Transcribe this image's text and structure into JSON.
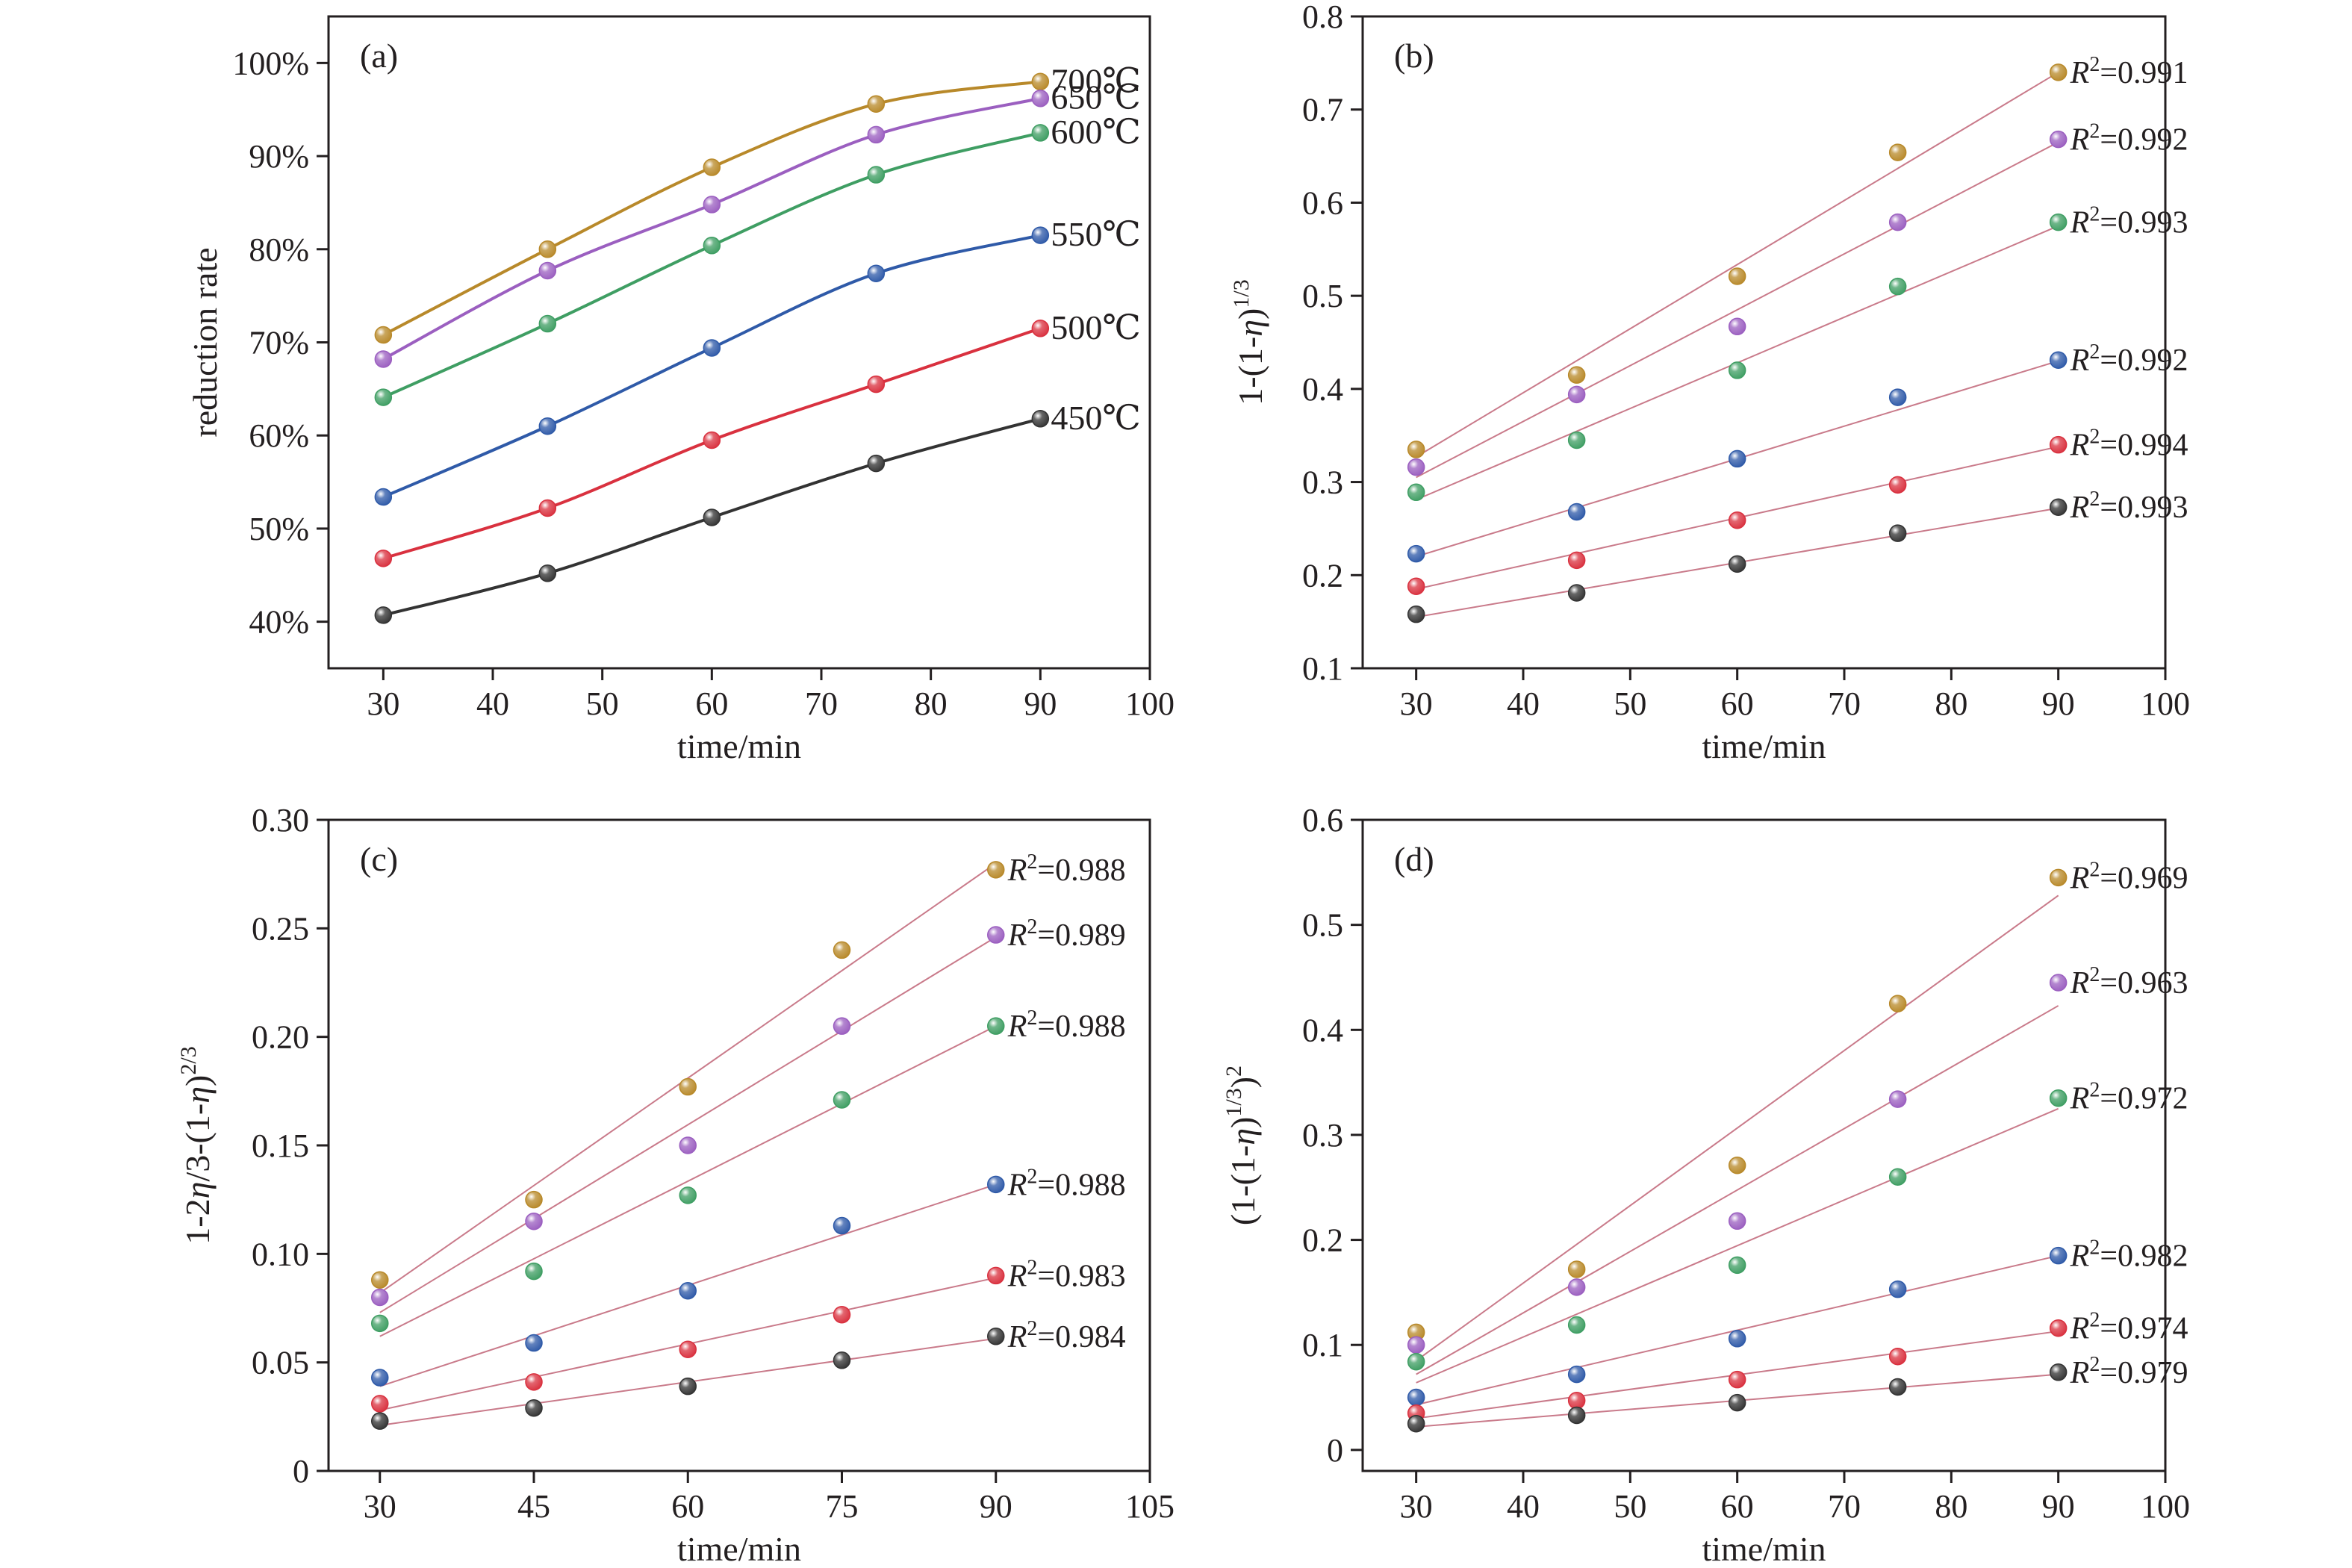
{
  "figure": {
    "background": "#ffffff",
    "colors": {
      "700": "#b8892a",
      "650": "#9b5fc0",
      "600": "#3f9e63",
      "550": "#2f5aa8",
      "500": "#d9313f",
      "450": "#333333",
      "fit_line": "#c97a8a",
      "axis": "#231f20"
    }
  },
  "chart_data": [
    {
      "panel": "(a)",
      "type": "line",
      "xlabel": "time/min",
      "ylabel": "reduction rate",
      "xlim": [
        25,
        100
      ],
      "ylim": [
        35,
        105
      ],
      "xticks": [
        30,
        40,
        50,
        60,
        70,
        80,
        90,
        100
      ],
      "xtick_labels": [
        "30",
        "40",
        "50",
        "60",
        "70",
        "80",
        "90",
        "100"
      ],
      "yticks": [
        40,
        50,
        60,
        70,
        80,
        90,
        100
      ],
      "ytick_labels": [
        "40%",
        "50%",
        "60%",
        "70%",
        "80%",
        "90%",
        "100%"
      ],
      "x": [
        30,
        45,
        60,
        75,
        90
      ],
      "series": [
        {
          "name": "700℃",
          "color_key": "700",
          "values": [
            70.8,
            80.0,
            88.8,
            95.6,
            98.0
          ]
        },
        {
          "name": "650℃",
          "color_key": "650",
          "values": [
            68.2,
            77.7,
            84.8,
            92.3,
            96.2
          ]
        },
        {
          "name": "600℃",
          "color_key": "600",
          "values": [
            64.1,
            72.0,
            80.4,
            88.0,
            92.5
          ]
        },
        {
          "name": "550℃",
          "color_key": "550",
          "values": [
            53.4,
            61.0,
            69.4,
            77.4,
            81.5
          ]
        },
        {
          "name": "500℃",
          "color_key": "500",
          "values": [
            46.8,
            52.2,
            59.5,
            65.5,
            71.5
          ]
        },
        {
          "name": "450℃",
          "color_key": "450",
          "values": [
            40.7,
            45.2,
            51.2,
            57.0,
            61.8
          ]
        }
      ],
      "series_labels_at_end": true,
      "fit": "smooth curve"
    },
    {
      "panel": "(b)",
      "type": "scatter",
      "xlabel": "time/min",
      "ylabel": "1-(1-η)1/3",
      "xlim": [
        25,
        100
      ],
      "ylim": [
        0.1,
        0.8
      ],
      "xticks": [
        30,
        40,
        50,
        60,
        70,
        80,
        90,
        100
      ],
      "xtick_labels": [
        "30",
        "40",
        "50",
        "60",
        "70",
        "80",
        "90",
        "100"
      ],
      "yticks": [
        0.1,
        0.2,
        0.3,
        0.4,
        0.5,
        0.6,
        0.7,
        0.8
      ],
      "ytick_labels": [
        "0.1",
        "0.2",
        "0.3",
        "0.4",
        "0.5",
        "0.6",
        "0.7",
        "0.8"
      ],
      "x": [
        30,
        45,
        60,
        75,
        90
      ],
      "series": [
        {
          "color_key": "700",
          "values": [
            0.335,
            0.415,
            0.521,
            0.654,
            0.74
          ],
          "r2": "=0.991",
          "fit": [
            0.327,
            0.74
          ]
        },
        {
          "color_key": "650",
          "values": [
            0.316,
            0.394,
            0.467,
            0.579,
            0.668
          ],
          "r2": "=0.992",
          "fit": [
            0.305,
            0.665
          ]
        },
        {
          "color_key": "600",
          "values": [
            0.289,
            0.345,
            0.42,
            0.51,
            0.579
          ],
          "r2": "=0.993",
          "fit": [
            0.281,
            0.575
          ]
        },
        {
          "color_key": "550",
          "values": [
            0.223,
            0.268,
            0.325,
            0.391,
            0.431
          ],
          "r2": "=0.992",
          "fit": [
            0.22,
            0.43
          ]
        },
        {
          "color_key": "500",
          "values": [
            0.188,
            0.216,
            0.259,
            0.297,
            0.34
          ],
          "r2": "=0.994",
          "fit": [
            0.185,
            0.338
          ]
        },
        {
          "color_key": "450",
          "values": [
            0.158,
            0.181,
            0.212,
            0.245,
            0.273
          ],
          "r2": "=0.993",
          "fit": [
            0.155,
            0.272
          ]
        }
      ],
      "r2_prefix": "R",
      "r2_exp": "2"
    },
    {
      "panel": "(c)",
      "type": "scatter",
      "xlabel": "time/min",
      "ylabel": "1-2η/3-(1-η)2/3",
      "xlim": [
        25,
        105
      ],
      "ylim": [
        0,
        0.3
      ],
      "xticks": [
        30,
        45,
        60,
        75,
        90,
        105
      ],
      "xtick_labels": [
        "30",
        "45",
        "60",
        "75",
        "90",
        "105"
      ],
      "yticks": [
        0,
        0.05,
        0.1,
        0.15,
        0.2,
        0.25,
        0.3
      ],
      "ytick_labels": [
        "0",
        "0.05",
        "0.10",
        "0.15",
        "0.20",
        "0.25",
        "0.30"
      ],
      "x": [
        30,
        45,
        60,
        75,
        90
      ],
      "series": [
        {
          "color_key": "700",
          "values": [
            0.088,
            0.125,
            0.177,
            0.24,
            0.277
          ],
          "r2": "=0.988",
          "fit": [
            0.082,
            0.28
          ]
        },
        {
          "color_key": "650",
          "values": [
            0.08,
            0.115,
            0.15,
            0.205,
            0.247
          ],
          "r2": "=0.989",
          "fit": [
            0.073,
            0.246
          ]
        },
        {
          "color_key": "600",
          "values": [
            0.068,
            0.092,
            0.127,
            0.171,
            0.205
          ],
          "r2": "=0.988",
          "fit": [
            0.062,
            0.205
          ]
        },
        {
          "color_key": "550",
          "values": [
            0.043,
            0.059,
            0.083,
            0.113,
            0.132
          ],
          "r2": "=0.988",
          "fit": [
            0.039,
            0.132
          ]
        },
        {
          "color_key": "500",
          "values": [
            0.031,
            0.041,
            0.056,
            0.072,
            0.09
          ],
          "r2": "=0.983",
          "fit": [
            0.028,
            0.089
          ]
        },
        {
          "color_key": "450",
          "values": [
            0.023,
            0.029,
            0.039,
            0.051,
            0.062
          ],
          "r2": "=0.984",
          "fit": [
            0.021,
            0.061
          ]
        }
      ],
      "r2_prefix": "R",
      "r2_exp": "2"
    },
    {
      "panel": "(d)",
      "type": "scatter",
      "xlabel": "time/min",
      "ylabel": "(1-(1-η)1/3)2",
      "xlim": [
        25,
        100
      ],
      "ylim": [
        -0.02,
        0.6
      ],
      "xticks": [
        30,
        40,
        50,
        60,
        70,
        80,
        90,
        100
      ],
      "xtick_labels": [
        "30",
        "40",
        "50",
        "60",
        "70",
        "80",
        "90",
        "100"
      ],
      "yticks": [
        0,
        0.1,
        0.2,
        0.3,
        0.4,
        0.5,
        0.6
      ],
      "ytick_labels": [
        "0",
        "0.1",
        "0.2",
        "0.3",
        "0.4",
        "0.5",
        "0.6"
      ],
      "x": [
        30,
        45,
        60,
        75,
        90
      ],
      "series": [
        {
          "color_key": "700",
          "values": [
            0.112,
            0.172,
            0.271,
            0.425,
            0.545
          ],
          "r2": "=0.969",
          "fit": [
            0.085,
            0.528
          ]
        },
        {
          "color_key": "650",
          "values": [
            0.1,
            0.155,
            0.218,
            0.334,
            0.445
          ],
          "r2": "=0.963",
          "fit": [
            0.072,
            0.423
          ]
        },
        {
          "color_key": "600",
          "values": [
            0.084,
            0.119,
            0.176,
            0.26,
            0.335
          ],
          "r2": "=0.972",
          "fit": [
            0.064,
            0.325
          ]
        },
        {
          "color_key": "550",
          "values": [
            0.05,
            0.072,
            0.106,
            0.153,
            0.185
          ],
          "r2": "=0.982",
          "fit": [
            0.043,
            0.185
          ]
        },
        {
          "color_key": "500",
          "values": [
            0.035,
            0.047,
            0.067,
            0.089,
            0.116
          ],
          "r2": "=0.974",
          "fit": [
            0.03,
            0.113
          ]
        },
        {
          "color_key": "450",
          "values": [
            0.025,
            0.033,
            0.045,
            0.06,
            0.074
          ],
          "r2": "=0.979",
          "fit": [
            0.022,
            0.072
          ]
        }
      ],
      "r2_prefix": "R",
      "r2_exp": "2"
    }
  ]
}
